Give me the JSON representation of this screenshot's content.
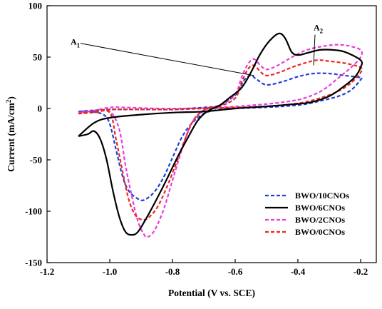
{
  "chart_data": {
    "type": "line",
    "xlabel": "Potential (V vs. SCE)",
    "ylabel": "Current (mA/cm",
    "ylabel_sup": "2",
    "ylabel_end": ")",
    "xlim": [
      -1.2,
      -0.15
    ],
    "ylim": [
      -150,
      100
    ],
    "xticks": [
      {
        "value": -1.2,
        "label": "-1.2"
      },
      {
        "value": -1.0,
        "label": "-1.0"
      },
      {
        "value": -0.8,
        "label": "-0.8"
      },
      {
        "value": -0.6,
        "label": "-0.6"
      },
      {
        "value": -0.4,
        "label": "-0.4"
      },
      {
        "value": -0.2,
        "label": "-0.2"
      }
    ],
    "yticks": [
      {
        "value": 100,
        "label": "100"
      },
      {
        "value": 50,
        "label": "50"
      },
      {
        "value": 0,
        "label": "0"
      },
      {
        "value": -50,
        "label": "-50"
      },
      {
        "value": -100,
        "label": "-100"
      },
      {
        "value": -150,
        "label": "-150"
      }
    ],
    "grid": false,
    "legend_position": "bottom-right",
    "annotations": [
      {
        "label": "A",
        "sub": "1",
        "from": [
          -0.54,
          32
        ],
        "text_at": [
          -1.125,
          62
        ]
      },
      {
        "label": "A",
        "sub": "2",
        "from": [
          -0.35,
          42
        ],
        "text_at": [
          -0.35,
          76
        ]
      }
    ],
    "series": [
      {
        "name": "BWO/10CNOs",
        "color": "#1f3fd6",
        "dash": "dashed",
        "points": [
          [
            -1.1,
            -3
          ],
          [
            -1.06,
            -2
          ],
          [
            -1.0,
            -1
          ],
          [
            -0.95,
            -1
          ],
          [
            -0.9,
            -1
          ],
          [
            -0.85,
            -1
          ],
          [
            -0.8,
            -1
          ],
          [
            -0.75,
            0
          ],
          [
            -0.7,
            1
          ],
          [
            -0.65,
            3
          ],
          [
            -0.6,
            13
          ],
          [
            -0.57,
            28
          ],
          [
            -0.55,
            32
          ],
          [
            -0.53,
            28
          ],
          [
            -0.5,
            23
          ],
          [
            -0.45,
            26
          ],
          [
            -0.4,
            31
          ],
          [
            -0.35,
            34
          ],
          [
            -0.3,
            34
          ],
          [
            -0.25,
            32
          ],
          [
            -0.2,
            30
          ],
          [
            -0.2,
            28
          ],
          [
            -0.23,
            18
          ],
          [
            -0.27,
            12
          ],
          [
            -0.32,
            8
          ],
          [
            -0.38,
            4
          ],
          [
            -0.45,
            2
          ],
          [
            -0.52,
            1
          ],
          [
            -0.6,
            0
          ],
          [
            -0.65,
            -1
          ],
          [
            -0.7,
            -5
          ],
          [
            -0.74,
            -15
          ],
          [
            -0.77,
            -28
          ],
          [
            -0.8,
            -48
          ],
          [
            -0.83,
            -68
          ],
          [
            -0.86,
            -82
          ],
          [
            -0.89,
            -89
          ],
          [
            -0.91,
            -88
          ],
          [
            -0.94,
            -80
          ],
          [
            -0.96,
            -65
          ],
          [
            -0.98,
            -40
          ],
          [
            -1.0,
            -15
          ],
          [
            -1.02,
            -6
          ],
          [
            -1.06,
            -3
          ],
          [
            -1.1,
            -3
          ]
        ]
      },
      {
        "name": "BWO/6CNOs",
        "color": "#000000",
        "dash": "solid",
        "points": [
          [
            -1.1,
            -27
          ],
          [
            -1.07,
            -25
          ],
          [
            -1.05,
            -22
          ],
          [
            -1.03,
            -30
          ],
          [
            -1.01,
            -50
          ],
          [
            -0.99,
            -80
          ],
          [
            -0.97,
            -105
          ],
          [
            -0.95,
            -120
          ],
          [
            -0.93,
            -123
          ],
          [
            -0.91,
            -120
          ],
          [
            -0.88,
            -105
          ],
          [
            -0.85,
            -88
          ],
          [
            -0.82,
            -70
          ],
          [
            -0.78,
            -45
          ],
          [
            -0.75,
            -28
          ],
          [
            -0.72,
            -12
          ],
          [
            -0.69,
            -3
          ],
          [
            -0.65,
            3
          ],
          [
            -0.62,
            10
          ],
          [
            -0.58,
            20
          ],
          [
            -0.55,
            35
          ],
          [
            -0.52,
            53
          ],
          [
            -0.49,
            66
          ],
          [
            -0.46,
            73
          ],
          [
            -0.44,
            68
          ],
          [
            -0.42,
            55
          ],
          [
            -0.4,
            52
          ],
          [
            -0.37,
            54
          ],
          [
            -0.33,
            57
          ],
          [
            -0.29,
            57
          ],
          [
            -0.25,
            55
          ],
          [
            -0.2,
            47
          ],
          [
            -0.2,
            40
          ],
          [
            -0.22,
            30
          ],
          [
            -0.26,
            20
          ],
          [
            -0.3,
            12
          ],
          [
            -0.36,
            6
          ],
          [
            -0.42,
            4
          ],
          [
            -0.5,
            2
          ],
          [
            -0.6,
            0
          ],
          [
            -0.7,
            -3
          ],
          [
            -0.8,
            -4
          ],
          [
            -0.9,
            -6
          ],
          [
            -1.0,
            -9
          ],
          [
            -1.05,
            -14
          ],
          [
            -1.1,
            -27
          ]
        ]
      },
      {
        "name": "BWO/2CNOs",
        "color": "#e83be0",
        "dash": "dashed",
        "points": [
          [
            -1.1,
            -4
          ],
          [
            -1.05,
            -3
          ],
          [
            -1.0,
            -3
          ],
          [
            -0.97,
            -20
          ],
          [
            -0.95,
            -55
          ],
          [
            -0.93,
            -85
          ],
          [
            -0.91,
            -110
          ],
          [
            -0.89,
            -123
          ],
          [
            -0.88,
            -125
          ],
          [
            -0.86,
            -120
          ],
          [
            -0.83,
            -100
          ],
          [
            -0.8,
            -70
          ],
          [
            -0.77,
            -40
          ],
          [
            -0.74,
            -15
          ],
          [
            -0.7,
            -2
          ],
          [
            -0.65,
            3
          ],
          [
            -0.6,
            14
          ],
          [
            -0.58,
            30
          ],
          [
            -0.56,
            43
          ],
          [
            -0.54,
            48
          ],
          [
            -0.52,
            42
          ],
          [
            -0.5,
            38
          ],
          [
            -0.47,
            41
          ],
          [
            -0.43,
            48
          ],
          [
            -0.38,
            56
          ],
          [
            -0.33,
            60
          ],
          [
            -0.28,
            62
          ],
          [
            -0.24,
            61
          ],
          [
            -0.2,
            57
          ],
          [
            -0.2,
            50
          ],
          [
            -0.23,
            40
          ],
          [
            -0.27,
            30
          ],
          [
            -0.32,
            18
          ],
          [
            -0.38,
            10
          ],
          [
            -0.45,
            6
          ],
          [
            -0.55,
            3
          ],
          [
            -0.65,
            1
          ],
          [
            -0.75,
            0
          ],
          [
            -0.85,
            0
          ],
          [
            -0.95,
            1
          ],
          [
            -1.0,
            1
          ],
          [
            -1.05,
            -2
          ],
          [
            -1.1,
            -4
          ]
        ]
      },
      {
        "name": "BWO/0CNOs",
        "color": "#e8281e",
        "dash": "dashed",
        "points": [
          [
            -1.1,
            -5
          ],
          [
            -1.05,
            -4
          ],
          [
            -1.0,
            -4
          ],
          [
            -0.98,
            -30
          ],
          [
            -0.96,
            -60
          ],
          [
            -0.94,
            -88
          ],
          [
            -0.92,
            -103
          ],
          [
            -0.9,
            -108
          ],
          [
            -0.88,
            -107
          ],
          [
            -0.85,
            -97
          ],
          [
            -0.82,
            -78
          ],
          [
            -0.79,
            -55
          ],
          [
            -0.76,
            -30
          ],
          [
            -0.73,
            -10
          ],
          [
            -0.69,
            0
          ],
          [
            -0.65,
            2
          ],
          [
            -0.6,
            10
          ],
          [
            -0.58,
            25
          ],
          [
            -0.56,
            38
          ],
          [
            -0.54,
            42
          ],
          [
            -0.52,
            36
          ],
          [
            -0.5,
            32
          ],
          [
            -0.46,
            35
          ],
          [
            -0.42,
            40
          ],
          [
            -0.38,
            44
          ],
          [
            -0.34,
            47
          ],
          [
            -0.3,
            46
          ],
          [
            -0.25,
            44
          ],
          [
            -0.2,
            40
          ],
          [
            -0.2,
            35
          ],
          [
            -0.23,
            25
          ],
          [
            -0.27,
            17
          ],
          [
            -0.33,
            10
          ],
          [
            -0.4,
            5
          ],
          [
            -0.5,
            2
          ],
          [
            -0.6,
            1
          ],
          [
            -0.7,
            0
          ],
          [
            -0.8,
            -1
          ],
          [
            -0.9,
            -1
          ],
          [
            -1.0,
            -1
          ],
          [
            -1.05,
            -3
          ],
          [
            -1.1,
            -5
          ]
        ]
      }
    ]
  }
}
